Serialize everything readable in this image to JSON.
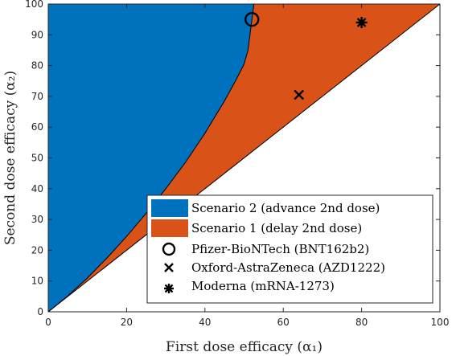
{
  "chart_data": {
    "type": "area",
    "xlabel": "First dose efficacy (α₁)",
    "ylabel": "Second dose efficacy (α₂)",
    "xlim": [
      0,
      100
    ],
    "ylim": [
      0,
      100
    ],
    "xticks": [
      0,
      20,
      40,
      60,
      80,
      100
    ],
    "yticks": [
      0,
      10,
      20,
      30,
      40,
      50,
      60,
      70,
      80,
      90,
      100
    ],
    "grid": false,
    "legend_position": "bottom-right",
    "regions": [
      {
        "name": "Scenario 2 (advance 2nd dose)",
        "color": "#0072BD",
        "description_boundary_upper": "alpha2 = 100",
        "boundary": [
          [
            0,
            0
          ],
          [
            5,
            5.2
          ],
          [
            10,
            11
          ],
          [
            15,
            17.5
          ],
          [
            20,
            24.5
          ],
          [
            25,
            32
          ],
          [
            30,
            40
          ],
          [
            35,
            48.5
          ],
          [
            40,
            58
          ],
          [
            45,
            68.5
          ],
          [
            48,
            75.5
          ],
          [
            50,
            80.5
          ],
          [
            51,
            85
          ],
          [
            51.5,
            90
          ],
          [
            52,
            95
          ],
          [
            52.5,
            100
          ]
        ]
      },
      {
        "name": "Scenario 1 (delay 2nd dose)",
        "color": "#D95319",
        "lower_boundary": [
          [
            0,
            0
          ],
          [
            100,
            100
          ]
        ]
      }
    ],
    "points": [
      {
        "name": "Pfizer-BioNTech (BNT162b2)",
        "marker": "circle",
        "x": 52,
        "y": 95
      },
      {
        "name": "Oxford-AstraZeneca (AZD1222)",
        "marker": "x",
        "x": 64,
        "y": 70.5
      },
      {
        "name": "Moderna (mRNA-1273)",
        "marker": "asterisk",
        "x": 80,
        "y": 94
      }
    ]
  }
}
